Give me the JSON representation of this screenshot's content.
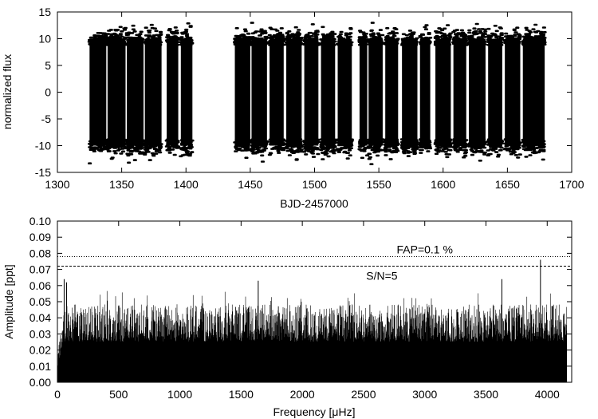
{
  "chart_data": [
    {
      "type": "scatter",
      "xlabel": "BJD-2457000",
      "ylabel": "normalized flux",
      "xlim": [
        1300,
        1700
      ],
      "ylim": [
        -15,
        15
      ],
      "xticks": [
        1300,
        1350,
        1400,
        1450,
        1500,
        1550,
        1600,
        1650,
        1700
      ],
      "yticks": [
        -15,
        -10,
        -5,
        0,
        5,
        10,
        15
      ],
      "observing_segments": [
        [
          1325,
          1338
        ],
        [
          1339,
          1353
        ],
        [
          1354,
          1367
        ],
        [
          1368,
          1381
        ],
        [
          1385,
          1394
        ],
        [
          1396,
          1405
        ],
        [
          1438,
          1450
        ],
        [
          1451,
          1463
        ],
        [
          1465,
          1476
        ],
        [
          1478,
          1490
        ],
        [
          1492,
          1503
        ],
        [
          1505,
          1516
        ],
        [
          1518,
          1529
        ],
        [
          1535,
          1541
        ],
        [
          1542,
          1553
        ],
        [
          1555,
          1565
        ],
        [
          1568,
          1580
        ],
        [
          1582,
          1590
        ],
        [
          1594,
          1606
        ],
        [
          1608,
          1618
        ],
        [
          1620,
          1633
        ],
        [
          1635,
          1646
        ],
        [
          1648,
          1660
        ],
        [
          1662,
          1679
        ]
      ],
      "flux_range": [
        -13.5,
        13.5
      ],
      "typical_scatter": [
        -10,
        10
      ],
      "marker_color": "#000000"
    },
    {
      "type": "line",
      "xlabel": "Frequency [μHz]",
      "ylabel": "Amplitude [ppt]",
      "xlim": [
        0,
        4200
      ],
      "ylim": [
        0,
        0.1
      ],
      "xticks": [
        0,
        500,
        1000,
        1500,
        2000,
        2500,
        3000,
        3500,
        4000
      ],
      "yticks": [
        "0.00",
        "0.01",
        "0.02",
        "0.03",
        "0.04",
        "0.05",
        "0.06",
        "0.07",
        "0.08",
        "0.09",
        "0.10"
      ],
      "spectrum_x_range": [
        0,
        4160
      ],
      "noise_floor_amplitude": 0.042,
      "peaks": [
        {
          "x": 55,
          "y": 0.064
        },
        {
          "x": 75,
          "y": 0.062
        },
        {
          "x": 1640,
          "y": 0.063
        },
        {
          "x": 3630,
          "y": 0.064
        },
        {
          "x": 3945,
          "y": 0.076
        }
      ],
      "thresholds": [
        {
          "label": "FAP=0.1 %",
          "y": 0.078,
          "style": "dotted"
        },
        {
          "label": "S/N=5",
          "y": 0.072,
          "style": "dashed"
        }
      ],
      "line_color": "#000000"
    }
  ]
}
